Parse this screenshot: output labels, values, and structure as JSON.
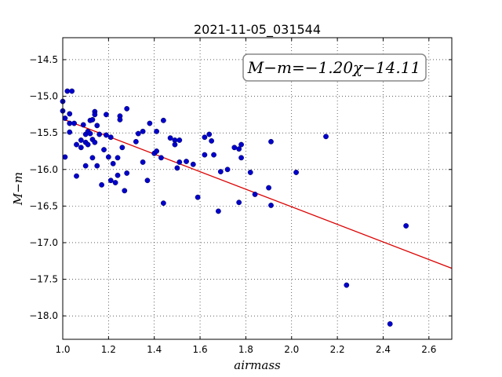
{
  "chart_data": {
    "type": "scatter",
    "title": "2021-11-05_031544",
    "xlabel": "airmass",
    "ylabel": "M−m",
    "xlim": [
      1.0,
      2.7
    ],
    "ylim": [
      -18.32,
      -14.2
    ],
    "x_ticks": [
      "1.0",
      "1.2",
      "1.4",
      "1.6",
      "1.8",
      "2.0",
      "2.2",
      "2.4",
      "2.6"
    ],
    "y_ticks": [
      "−14.5",
      "−15.0",
      "−15.5",
      "−16.0",
      "−16.5",
      "−17.0",
      "−17.5",
      "−18.0"
    ],
    "grid": true,
    "point_color": "#0000cc",
    "fit_color": "#dd0000",
    "annotation": "M−m=−1.20χ−14.11",
    "fit": {
      "slope": -1.2,
      "intercept": -14.11
    },
    "points": [
      [
        1.0,
        -15.07
      ],
      [
        1.0,
        -15.2
      ],
      [
        1.01,
        -15.3
      ],
      [
        1.01,
        -15.83
      ],
      [
        1.02,
        -14.93
      ],
      [
        1.03,
        -15.24
      ],
      [
        1.03,
        -15.37
      ],
      [
        1.03,
        -15.49
      ],
      [
        1.04,
        -14.93
      ],
      [
        1.05,
        -15.37
      ],
      [
        1.06,
        -16.09
      ],
      [
        1.06,
        -15.66
      ],
      [
        1.08,
        -15.6
      ],
      [
        1.08,
        -15.7
      ],
      [
        1.09,
        -15.39
      ],
      [
        1.1,
        -15.52
      ],
      [
        1.1,
        -15.63
      ],
      [
        1.1,
        -15.95
      ],
      [
        1.11,
        -15.48
      ],
      [
        1.11,
        -15.66
      ],
      [
        1.12,
        -15.33
      ],
      [
        1.12,
        -15.51
      ],
      [
        1.13,
        -15.32
      ],
      [
        1.13,
        -15.59
      ],
      [
        1.13,
        -15.84
      ],
      [
        1.14,
        -15.21
      ],
      [
        1.14,
        -15.25
      ],
      [
        1.14,
        -15.63
      ],
      [
        1.15,
        -15.4
      ],
      [
        1.15,
        -15.95
      ],
      [
        1.16,
        -15.52
      ],
      [
        1.17,
        -16.21
      ],
      [
        1.18,
        -15.73
      ],
      [
        1.19,
        -15.25
      ],
      [
        1.19,
        -15.53
      ],
      [
        1.2,
        -15.83
      ],
      [
        1.21,
        -15.56
      ],
      [
        1.21,
        -16.15
      ],
      [
        1.22,
        -15.92
      ],
      [
        1.23,
        -16.18
      ],
      [
        1.24,
        -15.84
      ],
      [
        1.24,
        -16.08
      ],
      [
        1.25,
        -15.27
      ],
      [
        1.25,
        -15.32
      ],
      [
        1.26,
        -15.7
      ],
      [
        1.27,
        -16.29
      ],
      [
        1.28,
        -15.17
      ],
      [
        1.28,
        -16.05
      ],
      [
        1.32,
        -15.62
      ],
      [
        1.33,
        -15.51
      ],
      [
        1.35,
        -15.48
      ],
      [
        1.35,
        -15.9
      ],
      [
        1.37,
        -16.15
      ],
      [
        1.38,
        -15.37
      ],
      [
        1.4,
        -15.78
      ],
      [
        1.41,
        -15.48
      ],
      [
        1.41,
        -15.75
      ],
      [
        1.43,
        -15.84
      ],
      [
        1.44,
        -15.33
      ],
      [
        1.44,
        -16.46
      ],
      [
        1.47,
        -15.57
      ],
      [
        1.49,
        -15.6
      ],
      [
        1.49,
        -15.66
      ],
      [
        1.5,
        -15.98
      ],
      [
        1.51,
        -15.6
      ],
      [
        1.51,
        -15.9
      ],
      [
        1.54,
        -15.89
      ],
      [
        1.57,
        -15.93
      ],
      [
        1.59,
        -16.38
      ],
      [
        1.62,
        -15.56
      ],
      [
        1.62,
        -15.8
      ],
      [
        1.64,
        -15.52
      ],
      [
        1.65,
        -15.61
      ],
      [
        1.66,
        -15.8
      ],
      [
        1.68,
        -16.57
      ],
      [
        1.69,
        -16.03
      ],
      [
        1.72,
        -16.0
      ],
      [
        1.75,
        -15.7
      ],
      [
        1.77,
        -15.72
      ],
      [
        1.77,
        -16.45
      ],
      [
        1.78,
        -15.84
      ],
      [
        1.78,
        -15.66
      ],
      [
        1.82,
        -16.04
      ],
      [
        1.84,
        -16.34
      ],
      [
        1.9,
        -16.25
      ],
      [
        1.91,
        -15.62
      ],
      [
        1.91,
        -16.49
      ],
      [
        2.02,
        -16.04
      ],
      [
        2.15,
        -15.55
      ],
      [
        2.24,
        -17.58
      ],
      [
        2.43,
        -18.11
      ],
      [
        2.5,
        -16.77
      ]
    ]
  }
}
